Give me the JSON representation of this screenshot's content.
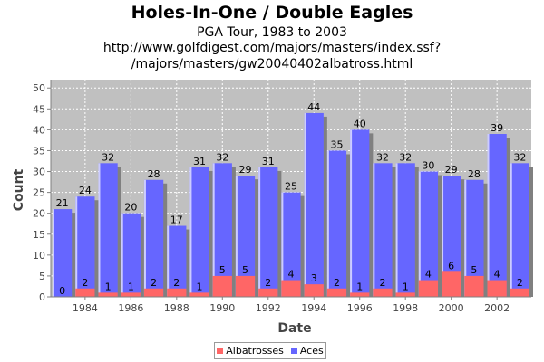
{
  "chart_data": {
    "type": "bar",
    "title": "Holes-In-One / Double Eagles",
    "subtitle": [
      "PGA Tour, 1983 to 2003",
      "http://www.golfdigest.com/majors/masters/index.ssf?",
      "/majors/masters/gw20040402albatross.html"
    ],
    "xlabel": "Date",
    "ylabel": "Count",
    "ylim": [
      0,
      52
    ],
    "y_ticks": [
      0,
      5,
      10,
      15,
      20,
      25,
      30,
      35,
      40,
      45,
      50
    ],
    "categories": [
      1983,
      1984,
      1985,
      1986,
      1987,
      1988,
      1989,
      1990,
      1991,
      1992,
      1993,
      1994,
      1995,
      1996,
      1997,
      1998,
      1999,
      2000,
      2001,
      2002,
      2003
    ],
    "x_tick_labels": [
      "1984",
      "1986",
      "1988",
      "1990",
      "1992",
      "1994",
      "1996",
      "1998",
      "2000",
      "2002"
    ],
    "stacked": false,
    "grid": true,
    "legend_position": "bottom",
    "series": [
      {
        "name": "Aces",
        "color": "#6666ff",
        "values": [
          21,
          24,
          32,
          20,
          28,
          17,
          31,
          32,
          29,
          31,
          25,
          44,
          35,
          40,
          32,
          32,
          30,
          29,
          28,
          39,
          32
        ]
      },
      {
        "name": "Albatrosses",
        "color": "#ff6666",
        "values": [
          0,
          2,
          1,
          1,
          2,
          2,
          1,
          5,
          5,
          2,
          4,
          3,
          2,
          1,
          2,
          1,
          4,
          6,
          5,
          4,
          2
        ]
      }
    ]
  }
}
